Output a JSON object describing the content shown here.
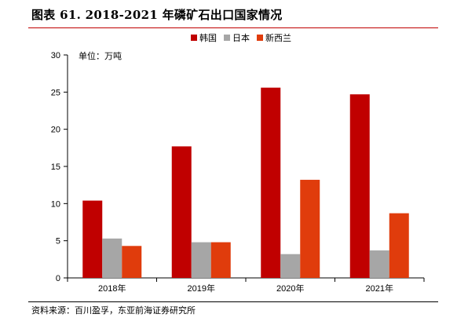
{
  "title": "图表 61. 2018-2021 年磷矿石出口国家情况",
  "source": "资料来源：百川盈孚，东亚前海证券研究所",
  "chart_data": {
    "type": "bar",
    "unit_label": "单位：万吨",
    "categories": [
      "2018年",
      "2019年",
      "2020年",
      "2021年"
    ],
    "series": [
      {
        "name": "韩国",
        "color": "#c00000",
        "values": [
          10.4,
          17.7,
          25.6,
          24.7
        ]
      },
      {
        "name": "日本",
        "color": "#a6a6a6",
        "values": [
          5.3,
          4.8,
          3.2,
          3.7
        ]
      },
      {
        "name": "新西兰",
        "color": "#e03c0c",
        "values": [
          4.3,
          4.8,
          13.2,
          8.7
        ]
      }
    ],
    "ylim": [
      0,
      30
    ],
    "yticks": [
      0,
      5,
      10,
      15,
      20,
      25,
      30
    ],
    "legend_position": "top-right",
    "grid": false
  }
}
